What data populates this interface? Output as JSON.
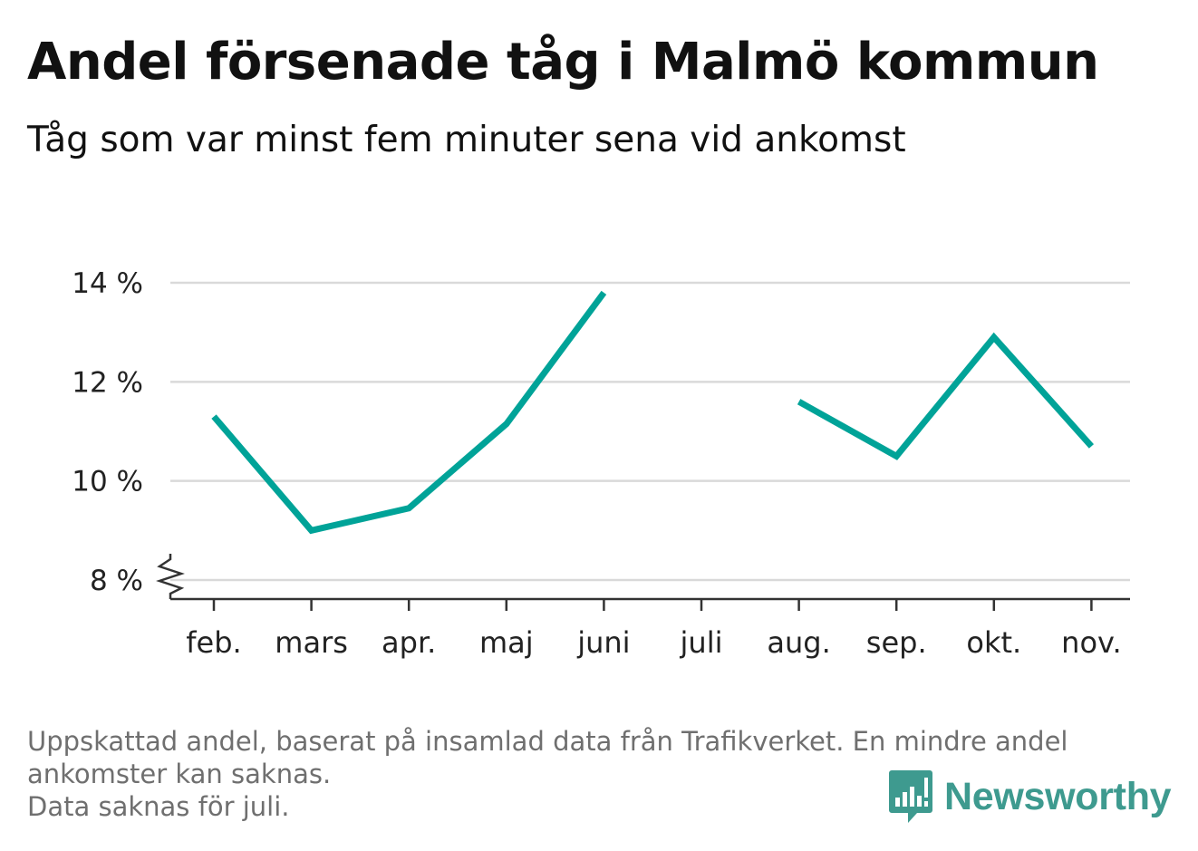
{
  "title": "Andel försenade tåg i Malmö kommun",
  "subtitle": "Tåg som var minst fem minuter sena vid ankomst",
  "footnote": {
    "line1": "Uppskattad andel, baserat på insamlad data från Trafikverket. En mindre andel",
    "line2": "ankomster kan saknas.",
    "line3": "Data saknas för juli."
  },
  "brand": {
    "name": "Newsworthy",
    "color": "#3e9a8f",
    "icon": "bar-chart-speech-icon"
  },
  "colors": {
    "line": "#00a398",
    "grid": "#d9d9d9",
    "axis": "#333333",
    "text": "#222222"
  },
  "chart_data": {
    "type": "line",
    "categories": [
      "feb.",
      "mars",
      "apr.",
      "maj",
      "juni",
      "juli",
      "aug.",
      "sep.",
      "okt.",
      "nov."
    ],
    "series": [
      {
        "values": [
          11.3,
          9.0,
          9.45,
          11.15,
          13.8,
          null,
          11.6,
          10.5,
          12.9,
          10.7
        ]
      }
    ],
    "yticks": [
      8,
      10,
      12,
      14
    ],
    "ytick_labels": [
      "8 %",
      "10 %",
      "12 %",
      "14 %"
    ],
    "ylim": [
      8,
      14
    ],
    "axis_break": true,
    "grid": true,
    "xlabel": "",
    "ylabel": ""
  }
}
